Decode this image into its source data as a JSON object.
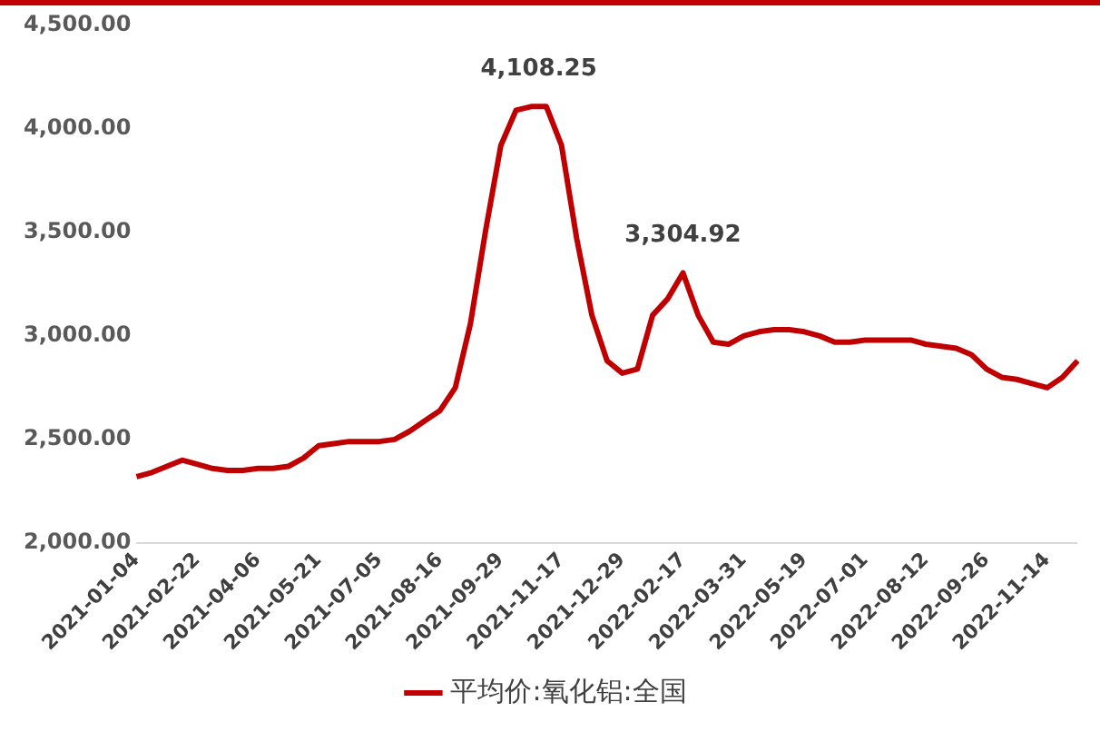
{
  "chart_data": {
    "type": "line",
    "categories": [
      "2021-01-04",
      null,
      null,
      null,
      "2021-02-22",
      null,
      null,
      null,
      "2021-04-06",
      null,
      null,
      null,
      "2021-05-21",
      null,
      null,
      null,
      "2021-07-05",
      null,
      null,
      null,
      "2021-08-16",
      null,
      null,
      null,
      "2021-09-29",
      null,
      null,
      null,
      "2021-11-17",
      null,
      null,
      null,
      "2021-12-29",
      null,
      null,
      null,
      "2022-02-17",
      null,
      null,
      null,
      "2022-03-31",
      null,
      null,
      null,
      "2022-05-19",
      null,
      null,
      null,
      "2022-07-01",
      null,
      null,
      null,
      "2022-08-12",
      null,
      null,
      null,
      "2022-09-26",
      null,
      null,
      null,
      "2022-11-14",
      null,
      null
    ],
    "series": [
      {
        "name": "平均价:氧化铝:全国",
        "color": "#c00000",
        "values": [
          2320,
          2340,
          2370,
          2400,
          2380,
          2360,
          2350,
          2350,
          2360,
          2360,
          2370,
          2410,
          2470,
          2480,
          2490,
          2490,
          2490,
          2500,
          2540,
          2590,
          2640,
          2750,
          3060,
          3510,
          3920,
          4090,
          4108.25,
          4108.25,
          3920,
          3470,
          3100,
          2880,
          2820,
          2840,
          3100,
          3180,
          3304.92,
          3100,
          2970,
          2960,
          3000,
          3020,
          3030,
          3030,
          3020,
          3000,
          2970,
          2970,
          2980,
          2980,
          2980,
          2980,
          2960,
          2950,
          2940,
          2910,
          2840,
          2800,
          2790,
          2770,
          2750,
          2800,
          2880
        ]
      }
    ],
    "ylim": [
      2000,
      4500
    ],
    "yticks": [
      {
        "value": 2000,
        "label": "2,000.00"
      },
      {
        "value": 2500,
        "label": "2,500.00"
      },
      {
        "value": 3000,
        "label": "3,000.00"
      },
      {
        "value": 3500,
        "label": "3,500.00"
      },
      {
        "value": 4000,
        "label": "4,000.00"
      },
      {
        "value": 4500,
        "label": "4,500.00"
      }
    ],
    "annotations": [
      {
        "text": "4,108.25",
        "y": 4108.25
      },
      {
        "text": "3,304.92",
        "y": 3304.92
      }
    ],
    "grid": false,
    "legend": "bottom",
    "marker": "none",
    "line_style": "solid"
  }
}
